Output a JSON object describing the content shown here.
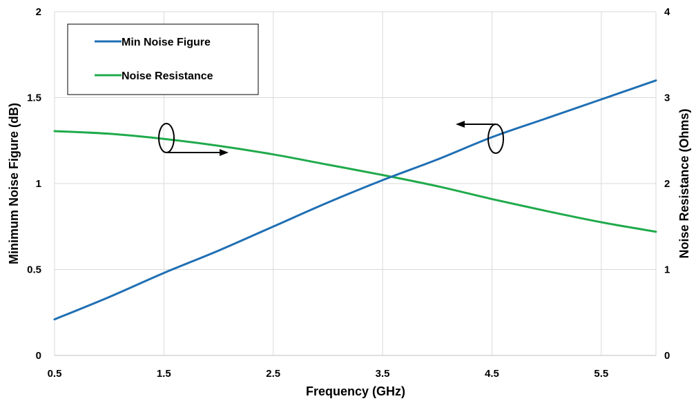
{
  "chart_data": {
    "type": "line",
    "xlabel": "Frequency (GHz)",
    "ylabel": "Minimum Noise Figure (dB)",
    "y2label": "Noise Resistance (Ohms)",
    "xlim": [
      0.5,
      6
    ],
    "ylim": [
      0,
      2
    ],
    "y2lim": [
      0,
      4
    ],
    "xticks": [
      "0.5",
      "1.5",
      "2.5",
      "3.5",
      "4.5",
      "5.5"
    ],
    "xtick_values": [
      0.5,
      1.5,
      2.5,
      3.5,
      4.5,
      5.5
    ],
    "yticks": [
      "0",
      "0.5",
      "1",
      "1.5",
      "2"
    ],
    "ytick_values": [
      0,
      0.5,
      1,
      1.5,
      2
    ],
    "y2ticks": [
      "0",
      "1",
      "2",
      "3",
      "4"
    ],
    "y2tick_values": [
      0,
      1,
      2,
      3,
      4
    ],
    "grid": true,
    "legend_position": "top-left",
    "series": [
      {
        "name": "Min Noise Figure",
        "axis": "left",
        "color": "#1f6fb4",
        "x": [
          0.5,
          1.0,
          1.5,
          2.0,
          2.5,
          3.0,
          3.5,
          4.0,
          4.5,
          5.0,
          5.5,
          6.0
        ],
        "y": [
          0.21,
          0.34,
          0.48,
          0.61,
          0.75,
          0.89,
          1.02,
          1.14,
          1.27,
          1.38,
          1.49,
          1.6
        ]
      },
      {
        "name": "Noise Resistance",
        "axis": "right",
        "color": "#1faa4b",
        "x": [
          0.5,
          1.0,
          1.5,
          2.0,
          2.5,
          3.0,
          3.5,
          4.0,
          4.5,
          5.0,
          5.5,
          6.0
        ],
        "y": [
          2.61,
          2.58,
          2.52,
          2.44,
          2.34,
          2.22,
          2.1,
          1.97,
          1.82,
          1.68,
          1.55,
          1.44
        ]
      }
    ]
  }
}
